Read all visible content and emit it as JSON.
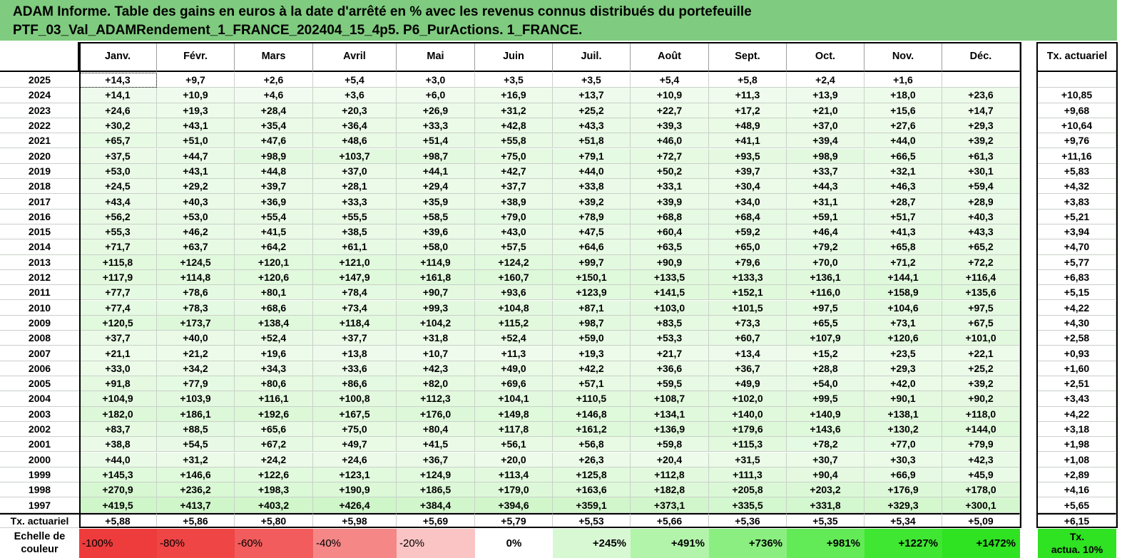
{
  "title": {
    "line1": "ADAM Informe. Table des gains en euros à la date d'arrêté en % avec les revenus connus distribués du portefeuille",
    "line2": "PTF_03_Val_ADAMRendement_1_FRANCE_202404_15_4p5. P6_PurActions. 1_FRANCE."
  },
  "table": {
    "months": [
      "Janv.",
      "Févr.",
      "Mars",
      "Avril",
      "Mai",
      "Juin",
      "Juil.",
      "Août",
      "Sept.",
      "Oct.",
      "Nov.",
      "Déc."
    ],
    "rate_header": "Tx. actuariel",
    "rows": [
      {
        "year": "2025",
        "values": [
          "+14,3",
          "+9,7",
          "+2,6",
          "+5,4",
          "+3,0",
          "+3,5",
          "+3,5",
          "+5,4",
          "+5,8",
          "+2,4",
          "+1,6",
          ""
        ],
        "rate": ""
      },
      {
        "year": "2024",
        "values": [
          "+14,1",
          "+10,9",
          "+4,6",
          "+3,6",
          "+6,0",
          "+16,9",
          "+13,7",
          "+10,9",
          "+11,3",
          "+13,9",
          "+18,0",
          "+23,6"
        ],
        "rate": "+10,85"
      },
      {
        "year": "2023",
        "values": [
          "+24,6",
          "+19,3",
          "+28,4",
          "+20,3",
          "+26,9",
          "+31,2",
          "+25,2",
          "+22,7",
          "+17,2",
          "+21,0",
          "+15,6",
          "+14,7"
        ],
        "rate": "+9,68"
      },
      {
        "year": "2022",
        "values": [
          "+30,2",
          "+43,1",
          "+35,4",
          "+36,4",
          "+33,3",
          "+42,8",
          "+43,3",
          "+39,3",
          "+48,9",
          "+37,0",
          "+27,6",
          "+29,3"
        ],
        "rate": "+10,64"
      },
      {
        "year": "2021",
        "values": [
          "+65,7",
          "+51,0",
          "+47,6",
          "+48,6",
          "+51,4",
          "+55,8",
          "+51,8",
          "+46,0",
          "+41,1",
          "+39,4",
          "+44,0",
          "+39,2"
        ],
        "rate": "+9,76"
      },
      {
        "year": "2020",
        "values": [
          "+37,5",
          "+44,7",
          "+98,9",
          "+103,7",
          "+98,7",
          "+75,0",
          "+79,1",
          "+72,7",
          "+93,5",
          "+98,9",
          "+66,5",
          "+61,3"
        ],
        "rate": "+11,16"
      },
      {
        "year": "2019",
        "values": [
          "+53,0",
          "+43,1",
          "+44,8",
          "+37,0",
          "+44,1",
          "+42,7",
          "+44,0",
          "+50,2",
          "+39,7",
          "+33,7",
          "+32,1",
          "+30,1"
        ],
        "rate": "+5,83"
      },
      {
        "year": "2018",
        "values": [
          "+24,5",
          "+29,2",
          "+39,7",
          "+28,1",
          "+29,4",
          "+37,7",
          "+33,8",
          "+33,1",
          "+30,4",
          "+44,3",
          "+46,3",
          "+59,4"
        ],
        "rate": "+4,32"
      },
      {
        "year": "2017",
        "values": [
          "+43,4",
          "+40,3",
          "+36,9",
          "+33,3",
          "+35,9",
          "+38,9",
          "+39,2",
          "+39,9",
          "+34,0",
          "+31,1",
          "+28,7",
          "+28,9"
        ],
        "rate": "+3,83"
      },
      {
        "year": "2016",
        "values": [
          "+56,2",
          "+53,0",
          "+55,4",
          "+55,5",
          "+58,5",
          "+79,0",
          "+78,9",
          "+68,8",
          "+68,4",
          "+59,1",
          "+51,7",
          "+40,3"
        ],
        "rate": "+5,21"
      },
      {
        "year": "2015",
        "values": [
          "+55,3",
          "+46,2",
          "+41,5",
          "+38,5",
          "+39,6",
          "+43,0",
          "+47,5",
          "+60,4",
          "+59,2",
          "+46,4",
          "+41,3",
          "+43,3"
        ],
        "rate": "+3,94"
      },
      {
        "year": "2014",
        "values": [
          "+71,7",
          "+63,7",
          "+64,2",
          "+61,1",
          "+58,0",
          "+57,5",
          "+64,6",
          "+63,5",
          "+65,0",
          "+79,2",
          "+65,8",
          "+65,2"
        ],
        "rate": "+4,70"
      },
      {
        "year": "2013",
        "values": [
          "+115,8",
          "+124,5",
          "+120,1",
          "+121,0",
          "+114,9",
          "+124,2",
          "+99,7",
          "+90,9",
          "+79,6",
          "+70,0",
          "+71,2",
          "+72,2"
        ],
        "rate": "+5,77"
      },
      {
        "year": "2012",
        "values": [
          "+117,9",
          "+114,8",
          "+120,6",
          "+147,9",
          "+161,8",
          "+160,7",
          "+150,1",
          "+133,5",
          "+133,3",
          "+136,1",
          "+144,1",
          "+116,4"
        ],
        "rate": "+6,83"
      },
      {
        "year": "2011",
        "values": [
          "+77,7",
          "+78,6",
          "+80,1",
          "+78,4",
          "+90,7",
          "+93,6",
          "+123,9",
          "+141,5",
          "+152,1",
          "+116,0",
          "+158,9",
          "+135,6"
        ],
        "rate": "+5,15"
      },
      {
        "year": "2010",
        "values": [
          "+77,4",
          "+78,3",
          "+68,6",
          "+73,4",
          "+99,3",
          "+104,8",
          "+87,1",
          "+103,0",
          "+101,5",
          "+97,5",
          "+104,6",
          "+97,5"
        ],
        "rate": "+4,22"
      },
      {
        "year": "2009",
        "values": [
          "+120,5",
          "+173,7",
          "+138,4",
          "+118,4",
          "+104,2",
          "+115,2",
          "+98,7",
          "+83,5",
          "+73,3",
          "+65,5",
          "+73,1",
          "+67,5"
        ],
        "rate": "+4,30"
      },
      {
        "year": "2008",
        "values": [
          "+37,7",
          "+40,0",
          "+52,4",
          "+37,7",
          "+31,8",
          "+52,4",
          "+59,0",
          "+53,3",
          "+60,7",
          "+107,9",
          "+120,6",
          "+101,0"
        ],
        "rate": "+2,58"
      },
      {
        "year": "2007",
        "values": [
          "+21,1",
          "+21,2",
          "+19,6",
          "+13,8",
          "+10,7",
          "+11,3",
          "+19,3",
          "+21,7",
          "+13,4",
          "+15,2",
          "+23,5",
          "+22,1"
        ],
        "rate": "+0,93"
      },
      {
        "year": "2006",
        "values": [
          "+33,0",
          "+34,2",
          "+34,3",
          "+33,6",
          "+42,3",
          "+49,0",
          "+42,2",
          "+36,6",
          "+36,7",
          "+28,8",
          "+29,3",
          "+25,2"
        ],
        "rate": "+1,60"
      },
      {
        "year": "2005",
        "values": [
          "+91,8",
          "+77,9",
          "+80,6",
          "+86,6",
          "+82,0",
          "+69,6",
          "+57,1",
          "+59,5",
          "+49,9",
          "+54,0",
          "+42,0",
          "+39,2"
        ],
        "rate": "+2,51"
      },
      {
        "year": "2004",
        "values": [
          "+104,9",
          "+103,9",
          "+116,1",
          "+100,8",
          "+112,3",
          "+104,1",
          "+110,5",
          "+108,7",
          "+102,0",
          "+99,5",
          "+90,1",
          "+90,2"
        ],
        "rate": "+3,43"
      },
      {
        "year": "2003",
        "values": [
          "+182,0",
          "+186,1",
          "+192,6",
          "+167,5",
          "+176,0",
          "+149,8",
          "+146,8",
          "+134,1",
          "+140,0",
          "+140,9",
          "+138,1",
          "+118,0"
        ],
        "rate": "+4,22"
      },
      {
        "year": "2002",
        "values": [
          "+83,7",
          "+88,5",
          "+65,6",
          "+75,0",
          "+80,4",
          "+117,8",
          "+161,2",
          "+136,9",
          "+179,6",
          "+143,6",
          "+130,2",
          "+144,0"
        ],
        "rate": "+3,18"
      },
      {
        "year": "2001",
        "values": [
          "+38,8",
          "+54,5",
          "+67,2",
          "+49,7",
          "+41,5",
          "+56,1",
          "+56,8",
          "+59,8",
          "+115,3",
          "+78,2",
          "+77,0",
          "+79,9"
        ],
        "rate": "+1,98"
      },
      {
        "year": "2000",
        "values": [
          "+44,0",
          "+31,2",
          "+24,2",
          "+24,6",
          "+36,7",
          "+20,0",
          "+26,3",
          "+20,4",
          "+31,5",
          "+30,7",
          "+30,3",
          "+42,3"
        ],
        "rate": "+1,08"
      },
      {
        "year": "1999",
        "values": [
          "+145,3",
          "+146,6",
          "+122,6",
          "+123,1",
          "+124,9",
          "+113,4",
          "+125,8",
          "+112,8",
          "+111,3",
          "+90,4",
          "+66,9",
          "+45,9"
        ],
        "rate": "+2,89"
      },
      {
        "year": "1998",
        "values": [
          "+270,9",
          "+236,2",
          "+198,3",
          "+190,9",
          "+186,5",
          "+179,0",
          "+163,6",
          "+182,8",
          "+205,8",
          "+203,2",
          "+176,9",
          "+178,0"
        ],
        "rate": "+4,16"
      },
      {
        "year": "1997",
        "values": [
          "+419,5",
          "+413,7",
          "+403,2",
          "+426,4",
          "+384,4",
          "+394,6",
          "+359,1",
          "+373,1",
          "+335,5",
          "+331,8",
          "+329,3",
          "+300,1"
        ],
        "rate": "+5,65"
      }
    ],
    "footer": {
      "label": "Tx. actuariel",
      "values": [
        "+5,88",
        "+5,86",
        "+5,80",
        "+5,98",
        "+5,69",
        "+5,79",
        "+5,53",
        "+5,66",
        "+5,36",
        "+5,35",
        "+5,34",
        "+5,09"
      ],
      "rate": "+6,15"
    }
  },
  "color_scale": {
    "label_line1": "Echelle de",
    "label_line2": "couleur",
    "stops": [
      {
        "text": "-100%",
        "color": "#ee3b3b"
      },
      {
        "text": "-80%",
        "color": "#f04545"
      },
      {
        "text": "-60%",
        "color": "#f25c5c"
      },
      {
        "text": "-40%",
        "color": "#f58787"
      },
      {
        "text": "-20%",
        "color": "#fbc4c4"
      },
      {
        "text": "0%",
        "color": "#ffffff"
      },
      {
        "text": "+245%",
        "color": "#d8f8d4"
      },
      {
        "text": "+491%",
        "color": "#b2f4aa"
      },
      {
        "text": "+736%",
        "color": "#8aef80"
      },
      {
        "text": "+981%",
        "color": "#63ea57"
      },
      {
        "text": "+1227%",
        "color": "#3fe632"
      },
      {
        "text": "+1472%",
        "color": "#2fe222"
      }
    ],
    "rate_legend_line1": "Tx.",
    "rate_legend_line2": "actua. 10%"
  },
  "colors": {
    "title_bg": "#7fcb7f",
    "green_scale_max": "#2fe222"
  }
}
